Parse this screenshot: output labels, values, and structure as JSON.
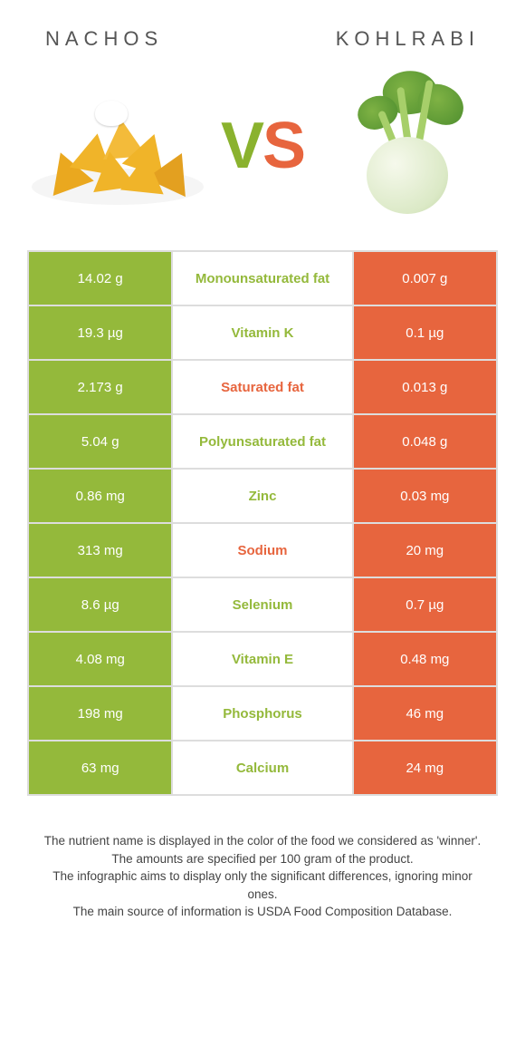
{
  "colors": {
    "left": "#94b93b",
    "right": "#e7653e",
    "border": "#dddddd",
    "bg": "#ffffff"
  },
  "foods": {
    "left": {
      "name": "NACHOS",
      "name_spaced": "N A C H O S"
    },
    "right": {
      "name": "KOHLRABI",
      "name_spaced": "K O H L R A B I"
    }
  },
  "vs": {
    "v": "V",
    "s": "S"
  },
  "table": {
    "rows": [
      {
        "left": "14.02 g",
        "label": "Monounsaturated fat",
        "right": "0.007 g",
        "winner": "left"
      },
      {
        "left": "19.3 µg",
        "label": "Vitamin K",
        "right": "0.1 µg",
        "winner": "left"
      },
      {
        "left": "2.173 g",
        "label": "Saturated fat",
        "right": "0.013 g",
        "winner": "right"
      },
      {
        "left": "5.04 g",
        "label": "Polyunsaturated fat",
        "right": "0.048 g",
        "winner": "left"
      },
      {
        "left": "0.86 mg",
        "label": "Zinc",
        "right": "0.03 mg",
        "winner": "left"
      },
      {
        "left": "313 mg",
        "label": "Sodium",
        "right": "20 mg",
        "winner": "right"
      },
      {
        "left": "8.6 µg",
        "label": "Selenium",
        "right": "0.7 µg",
        "winner": "left"
      },
      {
        "left": "4.08 mg",
        "label": "Vitamin E",
        "right": "0.48 mg",
        "winner": "left"
      },
      {
        "left": "198 mg",
        "label": "Phosphorus",
        "right": "46 mg",
        "winner": "left"
      },
      {
        "left": "63 mg",
        "label": "Calcium",
        "right": "24 mg",
        "winner": "left"
      }
    ]
  },
  "footer": {
    "line1": "The nutrient name is displayed in the color of the food we considered as 'winner'.",
    "line2": "The amounts are specified per 100 gram of the product.",
    "line3": "The infographic aims to display only the significant differences, ignoring minor ones.",
    "line4": "The main source of information is USDA Food Composition Database."
  }
}
